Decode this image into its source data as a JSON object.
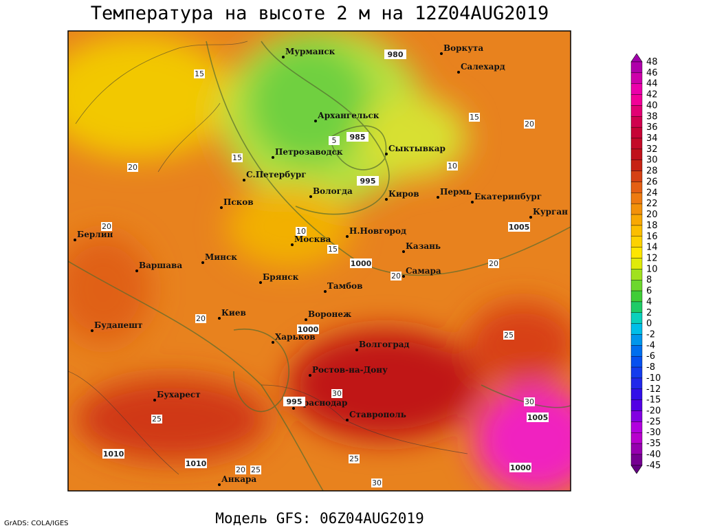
{
  "header": {
    "title": "Температура на высоте 2 м на 12Z04AUG2019"
  },
  "footer": {
    "model": "Модель GFS: 06Z04AUG2019",
    "credit": "GrADS: COLA/IGES"
  },
  "colorbar": {
    "levels": [
      48,
      46,
      44,
      42,
      40,
      38,
      36,
      34,
      32,
      30,
      28,
      26,
      24,
      22,
      20,
      18,
      16,
      14,
      12,
      10,
      8,
      6,
      4,
      2,
      0,
      -2,
      -4,
      -6,
      -8,
      -10,
      -12,
      -15,
      -20,
      -25,
      -30,
      -35,
      -40,
      -45
    ]
  },
  "cities": [
    "Мурманск",
    "Воркута",
    "Салехард",
    "Архангельск",
    "Петрозаводск",
    "Сыктывкар",
    "С.Петербург",
    "Вологда",
    "Киров",
    "Пермь",
    "Екатеринбург",
    "Курган",
    "Псков",
    "Берлин",
    "Москва",
    "Н.Новгород",
    "Казань",
    "Варшава",
    "Минск",
    "Брянск",
    "Самара",
    "Тамбов",
    "Киев",
    "Воронеж",
    "Будапешт",
    "Харьков",
    "Волгоград",
    "Ростов-на-Дону",
    "Бухарест",
    "Краснодар",
    "Ставрополь",
    "Анкара"
  ],
  "isobar_labels": [
    985,
    995,
    1000,
    1000,
    1005,
    1010,
    1010,
    995,
    1005,
    1000,
    980
  ],
  "isotherm_labels": [
    15,
    20,
    20,
    20,
    15,
    10,
    15,
    20,
    20,
    15,
    10,
    5,
    20,
    25,
    25,
    30,
    30,
    25,
    20,
    25,
    30
  ]
}
